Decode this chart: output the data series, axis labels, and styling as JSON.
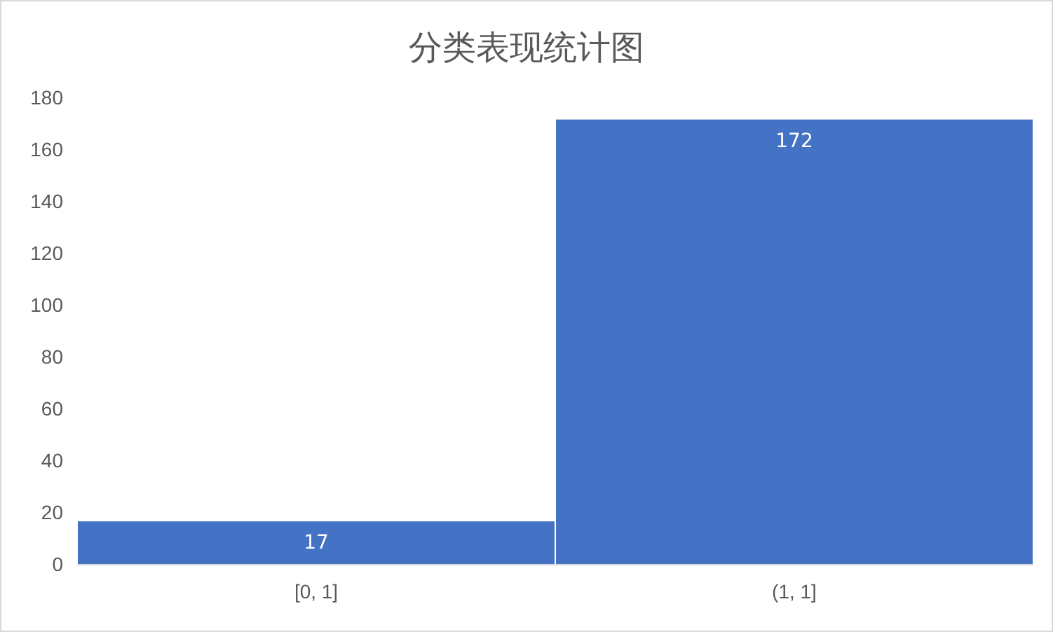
{
  "chart_data": {
    "type": "bar",
    "title": "分类表现统计图",
    "categories": [
      "[0, 1]",
      "(1, 1]"
    ],
    "values": [
      17,
      172
    ],
    "color": "#4472c4",
    "ylim": [
      0,
      180
    ],
    "yticks": [
      0,
      20,
      40,
      60,
      80,
      100,
      120,
      140,
      160,
      180
    ],
    "grid": false,
    "data_labels": true
  }
}
